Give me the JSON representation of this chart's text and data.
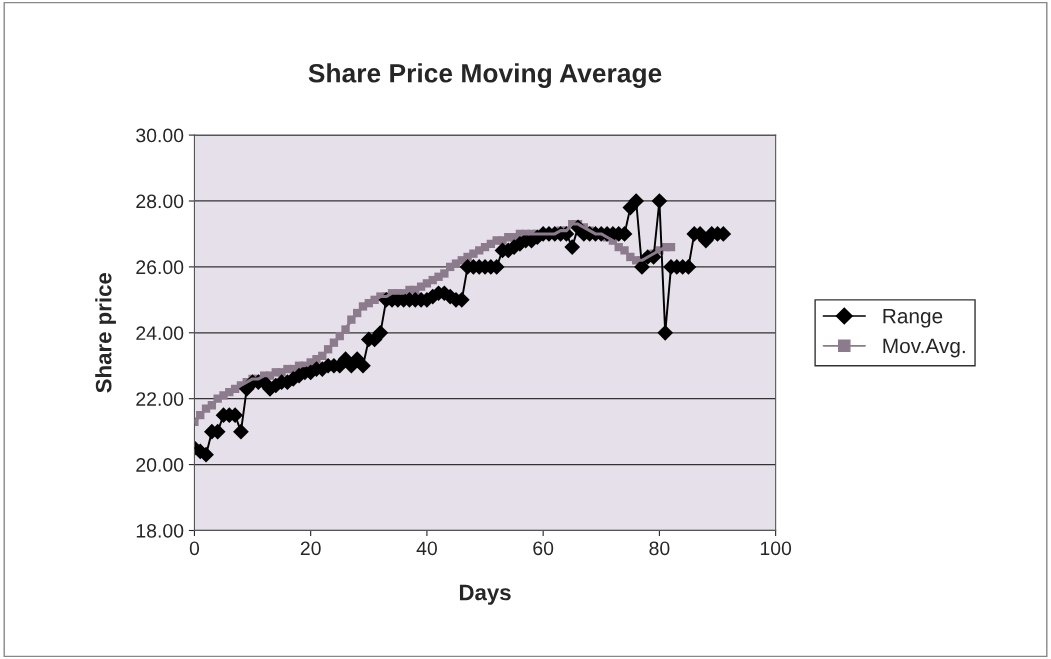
{
  "chart_data": {
    "type": "line",
    "title": "Share Price Moving Average",
    "xlabel": "Days",
    "ylabel": "Share price",
    "xlim": [
      0,
      100
    ],
    "xticks": [
      0,
      20,
      40,
      60,
      80,
      100
    ],
    "ylim": [
      18,
      30
    ],
    "yticks": [
      {
        "value": 18,
        "label": "18.00"
      },
      {
        "value": 20,
        "label": "20.00"
      },
      {
        "value": 22,
        "label": "22.00"
      },
      {
        "value": 24,
        "label": "24.00"
      },
      {
        "value": 26,
        "label": "26.00"
      },
      {
        "value": 28,
        "label": "28.00"
      },
      {
        "value": 30,
        "label": "30.00"
      }
    ],
    "grid": "y",
    "legend": "right",
    "series": [
      {
        "name": "Range",
        "color": "#000000",
        "marker": "diamond",
        "x": [
          0,
          1,
          2,
          3,
          4,
          5,
          6,
          7,
          8,
          9,
          10,
          11,
          12,
          13,
          14,
          15,
          16,
          17,
          18,
          19,
          20,
          21,
          22,
          23,
          24,
          25,
          26,
          27,
          28,
          29,
          30,
          31,
          32,
          33,
          34,
          35,
          36,
          37,
          38,
          39,
          40,
          41,
          42,
          43,
          44,
          45,
          46,
          47,
          48,
          49,
          50,
          51,
          52,
          53,
          54,
          55,
          56,
          57,
          58,
          59,
          60,
          61,
          62,
          63,
          64,
          65,
          66,
          67,
          68,
          69,
          70,
          71,
          72,
          73,
          74,
          75,
          76,
          77,
          78,
          79,
          80,
          81,
          82,
          83,
          84,
          85,
          86,
          87,
          88,
          89,
          90,
          91
        ],
        "values": [
          20.5,
          20.4,
          20.3,
          21.0,
          21.0,
          21.5,
          21.5,
          21.5,
          21.0,
          22.3,
          22.5,
          22.5,
          22.5,
          22.3,
          22.4,
          22.5,
          22.5,
          22.6,
          22.7,
          22.8,
          22.8,
          22.9,
          22.9,
          23.0,
          23.0,
          23.0,
          23.2,
          23.0,
          23.2,
          23.0,
          23.8,
          23.8,
          24.0,
          25.0,
          25.0,
          25.0,
          25.0,
          25.0,
          25.0,
          25.0,
          25.0,
          25.1,
          25.2,
          25.2,
          25.1,
          25.0,
          25.0,
          26.0,
          26.0,
          26.0,
          26.0,
          26.0,
          26.0,
          26.5,
          26.5,
          26.6,
          26.7,
          26.8,
          26.8,
          26.9,
          27.0,
          27.0,
          27.0,
          27.0,
          27.0,
          26.6,
          27.2,
          27.0,
          27.0,
          27.0,
          27.0,
          27.0,
          27.0,
          27.0,
          27.0,
          27.8,
          28.0,
          26.0,
          26.3,
          26.3,
          28.0,
          24.0,
          26.0,
          26.0,
          26.0,
          26.0,
          27.0,
          27.0,
          26.8,
          27.0,
          27.0,
          27.0
        ]
      },
      {
        "name": "Mov.Avg.",
        "color": "#8c7b8c",
        "marker": "square",
        "x": [
          0,
          1,
          2,
          3,
          4,
          5,
          6,
          7,
          8,
          9,
          10,
          11,
          12,
          13,
          14,
          15,
          16,
          17,
          18,
          19,
          20,
          21,
          22,
          23,
          24,
          25,
          26,
          27,
          28,
          29,
          30,
          31,
          32,
          33,
          34,
          35,
          36,
          37,
          38,
          39,
          40,
          41,
          42,
          43,
          44,
          45,
          46,
          47,
          48,
          49,
          50,
          51,
          52,
          53,
          54,
          55,
          56,
          57,
          58,
          59,
          60,
          61,
          62,
          63,
          64,
          65,
          66,
          67,
          68,
          69,
          70,
          71,
          72,
          73,
          74,
          75,
          76,
          77,
          78,
          79,
          80,
          81,
          82
        ],
        "values": [
          21.3,
          21.5,
          21.7,
          21.8,
          22.0,
          22.1,
          22.2,
          22.3,
          22.4,
          22.5,
          22.6,
          22.6,
          22.7,
          22.7,
          22.8,
          22.8,
          22.9,
          22.9,
          23.0,
          23.0,
          23.1,
          23.2,
          23.3,
          23.5,
          23.7,
          23.9,
          24.1,
          24.4,
          24.6,
          24.8,
          24.9,
          25.0,
          25.1,
          25.1,
          25.2,
          25.2,
          25.2,
          25.3,
          25.3,
          25.4,
          25.5,
          25.6,
          25.7,
          25.8,
          26.0,
          26.1,
          26.2,
          26.3,
          26.4,
          26.5,
          26.6,
          26.7,
          26.8,
          26.8,
          26.9,
          26.9,
          27.0,
          27.0,
          27.0,
          27.0,
          27.0,
          27.0,
          27.0,
          27.1,
          27.1,
          27.3,
          27.3,
          27.2,
          27.1,
          27.0,
          27.0,
          26.9,
          26.8,
          26.6,
          26.5,
          26.3,
          26.2,
          26.2,
          26.3,
          26.4,
          26.5,
          26.6,
          26.6
        ]
      }
    ]
  }
}
